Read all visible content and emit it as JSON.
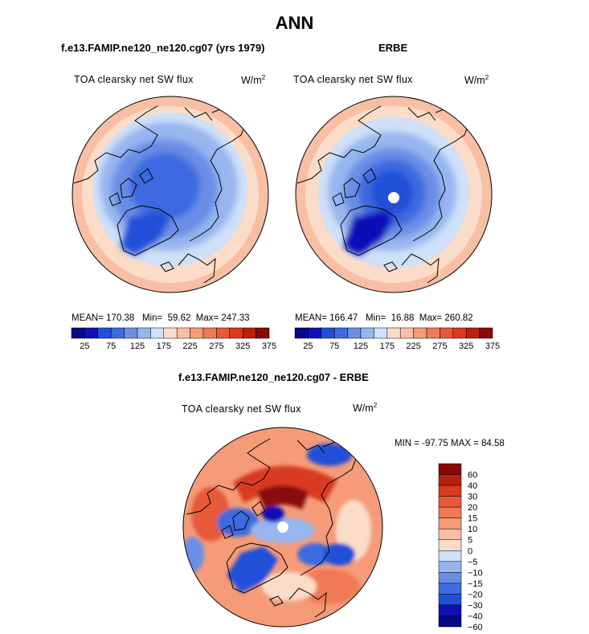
{
  "main_title": "ANN",
  "colors": {
    "blue_scale": [
      "#08088a",
      "#1010b8",
      "#2050d8",
      "#3d6be0",
      "#6a8ee6",
      "#97b5ef",
      "#cfe0f8"
    ],
    "red_scale": [
      "#fbdcc9",
      "#f8bfa4",
      "#f59b78",
      "#f07a54",
      "#e8583a",
      "#d93a20",
      "#b82010",
      "#8a0808"
    ],
    "land_outline": "#000000"
  },
  "chart_data": [
    {
      "type": "heatmap",
      "projection": "polar-stereographic-north",
      "case_title": "f.e13.FAMIP.ne120_ne120.cg07 (yrs 1979)",
      "variable": "TOA clearsky net SW flux",
      "units": "W/m",
      "units_exp": "2",
      "stats": {
        "mean_label": "MEAN=",
        "mean": "170.38",
        "min_label": "Min=",
        "min": "59.62",
        "max_label": "Max=",
        "max": "247.33"
      },
      "colorbar_ticks": [
        "25",
        "75",
        "125",
        "175",
        "225",
        "275",
        "325",
        "375"
      ]
    },
    {
      "type": "heatmap",
      "projection": "polar-stereographic-north",
      "case_title": "ERBE",
      "variable": "TOA clearsky net SW flux",
      "units": "W/m",
      "units_exp": "2",
      "stats": {
        "mean_label": "MEAN=",
        "mean": "166.47",
        "min_label": "Min=",
        "min": "16.88",
        "max_label": "Max=",
        "max": "260.82"
      },
      "colorbar_ticks": [
        "25",
        "75",
        "125",
        "175",
        "225",
        "275",
        "325",
        "375"
      ]
    },
    {
      "type": "heatmap",
      "projection": "polar-stereographic-north",
      "case_title": "f.e13.FAMIP.ne120_ne120.cg07 - ERBE",
      "variable": "TOA clearsky net SW flux",
      "units": "W/m",
      "units_exp": "2",
      "stats_text": "MIN = -97.75  MAX =  84.58",
      "colorbar_ticks": [
        "60",
        "40",
        "30",
        "20",
        "15",
        "10",
        "5",
        "0",
        "−5",
        "−10",
        "−15",
        "−20",
        "−30",
        "−40",
        "−60"
      ]
    }
  ]
}
